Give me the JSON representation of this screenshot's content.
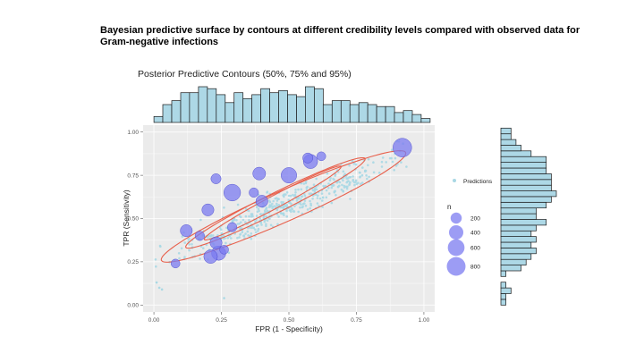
{
  "slide": {
    "title": "Bayesian predictive surface by contours at different credibility levels compared with observed data for Gram-negative infections"
  },
  "chart_data": {
    "type": "scatter",
    "title": "Posterior Predictive Contours (50%, 75% and 95%)",
    "xlabel": "FPR (1 - Specificity)",
    "ylabel": "TPR (Sensitivity)",
    "xlim": [
      -0.04,
      1.04
    ],
    "ylim": [
      -0.04,
      1.04
    ],
    "x_ticks": [
      "0.00",
      "0.25",
      "0.50",
      "0.75",
      "1.00"
    ],
    "y_ticks": [
      "0.00",
      "0.25",
      "0.50",
      "0.75",
      "1.00"
    ],
    "grid": true,
    "legend": {
      "predictions_label": "Predictions",
      "size_title": "n",
      "size_breaks": [
        200,
        400,
        600,
        800
      ],
      "placement": "right"
    },
    "colors": {
      "panel_background": "#ebebeb",
      "grid": "#ffffff",
      "predictions": "#a9d8e4",
      "observed_fill": "#7b7bf0",
      "observed_stroke": "#4040c8",
      "contour": "#e8604c",
      "histogram_fill": "#add8e6",
      "histogram_stroke": "#1a1a1a"
    },
    "contours": [
      {
        "level": "50%",
        "center": [
          0.44,
          0.59
        ],
        "semi_major": 0.33,
        "semi_minor": 0.032,
        "angle_deg": 40
      },
      {
        "level": "75%",
        "center": [
          0.45,
          0.59
        ],
        "semi_major": 0.42,
        "semi_minor": 0.05,
        "angle_deg": 38
      },
      {
        "level": "95%",
        "center": [
          0.48,
          0.57
        ],
        "semi_major": 0.55,
        "semi_minor": 0.08,
        "angle_deg": 35
      }
    ],
    "observed": [
      {
        "x": 0.92,
        "y": 0.91,
        "n": 800
      },
      {
        "x": 0.29,
        "y": 0.65,
        "n": 600
      },
      {
        "x": 0.5,
        "y": 0.75,
        "n": 500
      },
      {
        "x": 0.58,
        "y": 0.83,
        "n": 400
      },
      {
        "x": 0.24,
        "y": 0.3,
        "n": 400
      },
      {
        "x": 0.21,
        "y": 0.28,
        "n": 350
      },
      {
        "x": 0.39,
        "y": 0.76,
        "n": 300
      },
      {
        "x": 0.2,
        "y": 0.55,
        "n": 250
      },
      {
        "x": 0.4,
        "y": 0.6,
        "n": 250
      },
      {
        "x": 0.12,
        "y": 0.43,
        "n": 250
      },
      {
        "x": 0.23,
        "y": 0.36,
        "n": 250
      },
      {
        "x": 0.57,
        "y": 0.85,
        "n": 150
      },
      {
        "x": 0.23,
        "y": 0.73,
        "n": 150
      },
      {
        "x": 0.17,
        "y": 0.4,
        "n": 120
      },
      {
        "x": 0.29,
        "y": 0.45,
        "n": 120
      },
      {
        "x": 0.37,
        "y": 0.65,
        "n": 120
      },
      {
        "x": 0.62,
        "y": 0.86,
        "n": 100
      },
      {
        "x": 0.26,
        "y": 0.32,
        "n": 100
      },
      {
        "x": 0.08,
        "y": 0.24,
        "n": 100
      }
    ],
    "x_histogram": {
      "bin_width": 0.033,
      "start": 0.0,
      "counts": [
        3,
        9,
        11,
        15,
        15,
        18,
        17,
        14,
        10,
        15,
        12,
        14,
        17,
        15,
        16,
        14,
        13,
        18,
        17,
        9,
        11,
        11,
        9,
        10,
        9,
        8,
        8,
        5,
        6,
        4,
        2
      ]
    },
    "y_histogram": {
      "bin_width": 0.033,
      "start": 0.0,
      "counts": [
        1,
        1,
        2,
        1,
        0,
        1,
        4,
        5,
        6,
        7,
        6,
        7,
        6,
        7,
        9,
        7,
        7,
        9,
        10,
        11,
        10,
        10,
        10,
        9,
        9,
        9,
        6,
        4,
        3,
        2,
        2
      ]
    }
  }
}
